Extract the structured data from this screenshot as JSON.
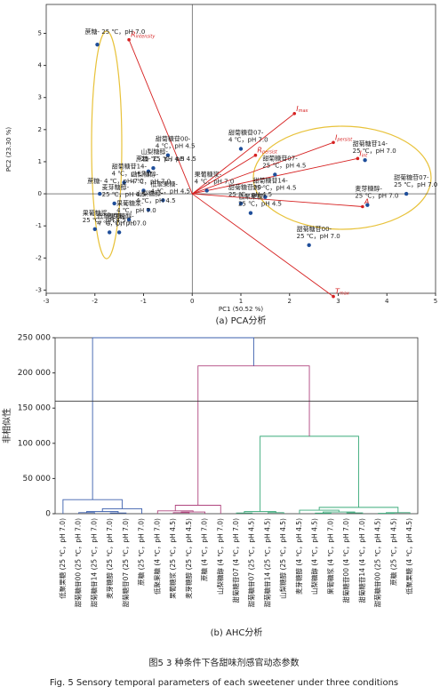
{
  "chart_data": [
    {
      "type": "scatter",
      "caption": "(a) PCA分析",
      "x_label": "PC1 (50.52 %)",
      "y_label": "PC2 (23.30 %)",
      "xlim": [
        -3,
        5
      ],
      "xticks": [
        -3,
        -2,
        -1,
        0,
        1,
        2,
        3,
        4,
        5
      ],
      "ylim": [
        -3.1,
        5.9
      ],
      "yticks": [
        -3,
        -2,
        -1,
        0,
        1,
        2,
        3,
        4,
        5
      ],
      "point_color": "#1f4e9a",
      "vector_color": "#d62020",
      "points": [
        {
          "x": -1.95,
          "y": 4.65,
          "label": [
            "蔗糖- 25 ℃，pH 7.0"
          ]
        },
        {
          "x": -0.5,
          "y": 1.2,
          "label": [
            "甜菊糖苷00-",
            "4 ℃，pH 4.5"
          ]
        },
        {
          "x": -0.8,
          "y": 0.8,
          "label": [
            "山梨糖醇-",
            "25 ℃，pH 4.5"
          ]
        },
        {
          "x": -0.9,
          "y": 0.7,
          "label": [
            "蔗糖- 25 ℃，pH 4.5"
          ]
        },
        {
          "x": -1.4,
          "y": 0.35,
          "label": [
            "甜菊糖苷14-",
            "4 ℃，pH 7.0"
          ]
        },
        {
          "x": -1.9,
          "y": 0.0,
          "label": [
            "蔗糖- 4 ℃，pH 7.0"
          ]
        },
        {
          "x": -1.0,
          "y": 0.1,
          "label": [
            "山梨糖醇-",
            "4 ℃，pH 7.0"
          ]
        },
        {
          "x": -1.6,
          "y": -0.3,
          "label": [
            "麦芽糖醇-",
            "25 ℃，pH 4.5"
          ]
        },
        {
          "x": -2.0,
          "y": -1.1,
          "label": [
            "果葡糖浆-",
            "25 ℃，pH 4.5"
          ]
        },
        {
          "x": -1.7,
          "y": -1.2,
          "label": [
            "低聚果糖-",
            "4 ℃，pH 7.0"
          ]
        },
        {
          "x": -0.6,
          "y": -0.2,
          "label": [
            "低聚果糖-",
            "4 ℃，pH 4.5"
          ]
        },
        {
          "x": -0.9,
          "y": -0.5,
          "label": [
            "山梨糖醇-",
            "4 ℃，pH 4.5"
          ]
        },
        {
          "x": -1.3,
          "y": -0.8,
          "label": [
            "果葡糖浆-",
            "4 ℃，pH 7.0"
          ]
        },
        {
          "x": -1.5,
          "y": -1.2,
          "label": [
            "麦芽糖醇-",
            "4 ℃，pH 7.0"
          ]
        },
        {
          "x": 0.3,
          "y": 0.1,
          "label": [
            "果葡糖浆-",
            "4 ℃，pH 7.0"
          ]
        },
        {
          "x": 1.0,
          "y": 1.4,
          "label": [
            "甜菊糖苷07-",
            "4 ℃，pH 7.0"
          ]
        },
        {
          "x": 1.7,
          "y": 0.6,
          "label": [
            "甜菊糖苷07-",
            "25 ℃，pH 4.5"
          ]
        },
        {
          "x": 1.5,
          "y": -0.1,
          "label": [
            "甜菊糖苷14-",
            "25 ℃，pH 4.5"
          ]
        },
        {
          "x": 1.0,
          "y": -0.3,
          "label": [
            "甜菊糖苷00-",
            "25 ℃，pH 4.5"
          ]
        },
        {
          "x": 1.2,
          "y": -0.6,
          "label": [
            "低聚果糖-",
            "25 ℃，pH 4.5"
          ]
        },
        {
          "x": 3.55,
          "y": 1.05,
          "label": [
            "甜菊糖苷14-",
            "25 ℃，pH 7.0"
          ]
        },
        {
          "x": 4.4,
          "y": 0.0,
          "label": [
            "甜菊糖苷07-",
            "25 ℃，pH 7.0"
          ]
        },
        {
          "x": 3.6,
          "y": -0.35,
          "label": [
            "麦芽糖醇-",
            "25 ℃，pH 7.0"
          ]
        },
        {
          "x": 2.4,
          "y": -1.6,
          "label": [
            "甜菊糖苷00-",
            "25 ℃，pH 7.0"
          ]
        }
      ],
      "vectors": [
        {
          "x": -1.3,
          "y": 4.8,
          "symbol": "R",
          "sub": "intensity"
        },
        {
          "x": 2.1,
          "y": 2.5,
          "symbol": "I",
          "sub": "max"
        },
        {
          "x": 2.9,
          "y": 1.6,
          "symbol": "I",
          "sub": "persist"
        },
        {
          "x": 3.4,
          "y": 1.1,
          "symbol": "I",
          "sub": "int"
        },
        {
          "x": 1.3,
          "y": 1.2,
          "symbol": "R",
          "sub": "persist"
        },
        {
          "x": 3.5,
          "y": -0.4,
          "symbol": "A",
          "sub": ""
        },
        {
          "x": 2.9,
          "y": -3.2,
          "symbol": "T",
          "sub": "max"
        }
      ]
    },
    {
      "type": "dendrogram",
      "caption": "(b) AHC分析",
      "y_label": "非相似性",
      "ylim": [
        0,
        250000
      ],
      "yticks": [
        0,
        {
          "value": 50000,
          "label": "50 000"
        },
        {
          "value": 100000,
          "label": "100 000"
        },
        {
          "value": 150000,
          "label": "150 000"
        },
        {
          "value": 200000,
          "label": "200 000"
        },
        {
          "value": 250000,
          "label": "250 000"
        }
      ],
      "threshold": 160000,
      "leaves": [
        "低聚果糖 (25 ℃，pH 7.0)",
        "甜菊糖苷00 (25 ℃，pH 7.0)",
        "甜菊糖苷14 (25 ℃，pH 7.0)",
        "麦芽糖醇 (25 ℃，pH 7.0)",
        "甜菊糖苷07 (25 ℃，pH 7.0)",
        "蔗糖 (25 ℃，pH 7.0)",
        "低聚果糖 (4 ℃，pH 7.0)",
        "果葡糖浆 (25 ℃，pH 4.5)",
        "麦芽糖醇 (25 ℃，pH 4.5)",
        "蔗糖 (4 ℃，pH 7.0)",
        "山梨糖醇 (4 ℃，pH 7.0)",
        "甜菊糖苷07 (4 ℃，pH 7.0)",
        "甜菊糖苷07 (25 ℃，pH 4.5)",
        "甜菊糖苷14 (25 ℃，pH 4.5)",
        "山梨糖醇 (25 ℃，pH 4.5)",
        "麦芽糖醇 (4 ℃，pH 4.5)",
        "山梨糖醇 (4 ℃，pH 4.5)",
        "果葡糖浆 (4 ℃，pH 7.0)",
        "甜菊糖苷00 (4 ℃，pH 7.0)",
        "甜菊糖苷14 (4 ℃，pH 7.0)",
        "甜菊糖苷00 (25 ℃，pH 4.5)",
        "蔗糖 (25 ℃，pH 4.5)",
        "低聚果糖 (4 ℃，pH 4.5)"
      ],
      "merges": [
        [
          1,
          2,
          1500
        ],
        [
          3,
          4,
          1000
        ],
        [
          23,
          24,
          3000
        ],
        [
          25,
          5,
          7000
        ],
        [
          0,
          26,
          20000
        ],
        [
          7,
          8,
          1500
        ],
        [
          28,
          9,
          2500
        ],
        [
          6,
          29,
          4000
        ],
        [
          30,
          10,
          12000
        ],
        [
          11,
          12,
          1000
        ],
        [
          13,
          14,
          1500
        ],
        [
          32,
          33,
          3000
        ],
        [
          16,
          17,
          800
        ],
        [
          18,
          19,
          1200
        ],
        [
          35,
          36,
          2500
        ],
        [
          15,
          37,
          5000
        ],
        [
          20,
          21,
          600
        ],
        [
          39,
          22,
          1500
        ],
        [
          38,
          40,
          9000
        ],
        [
          34,
          41,
          110000
        ],
        [
          31,
          42,
          210000
        ],
        [
          27,
          43,
          250000
        ]
      ],
      "merge_colors": [
        "#3b5fad",
        "#3b5fad",
        "#3b5fad",
        "#3b5fad",
        "#3b5fad",
        "#b0457f",
        "#b0457f",
        "#b0457f",
        "#b0457f",
        "#3aaa7a",
        "#3aaa7a",
        "#3aaa7a",
        "#3aaa7a",
        "#3aaa7a",
        "#3aaa7a",
        "#3aaa7a",
        "#3aaa7a",
        "#3aaa7a",
        "#3aaa7a",
        "#3aaa7a",
        "#b0457f",
        "#3b5fad"
      ]
    }
  ],
  "caption": {
    "title": "图5 3 种条件下各甜味剂感官动态参数",
    "title_en": "Fig. 5 Sensory temporal parameters of each sweetener under three conditions"
  }
}
